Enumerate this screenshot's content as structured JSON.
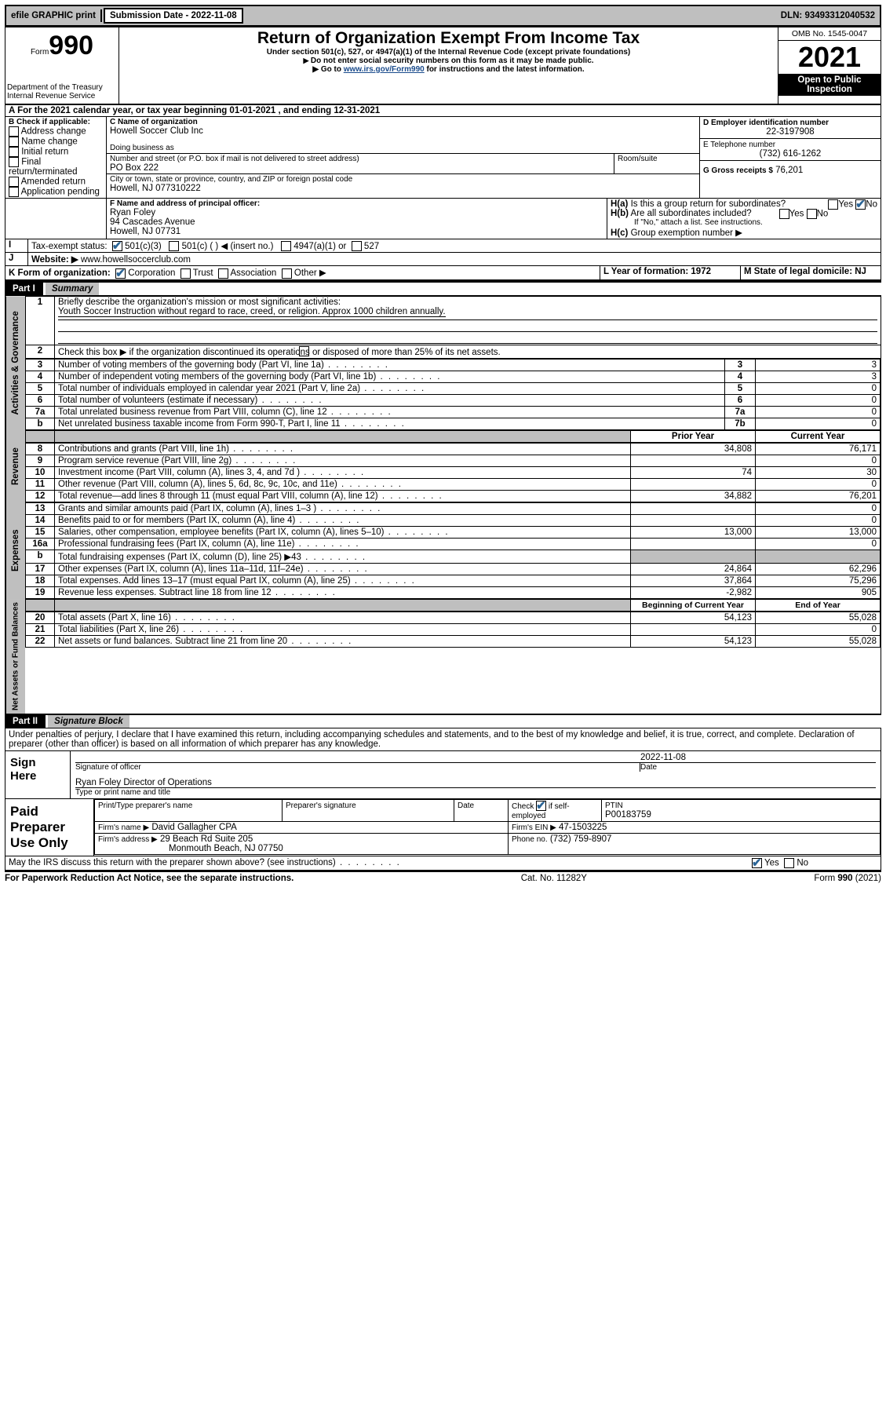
{
  "topbar": {
    "efile": "efile GRAPHIC print",
    "submission_label": "Submission Date - 2022-11-08",
    "dln": "DLN: 93493312040532"
  },
  "header": {
    "form_word": "Form",
    "form_num": "990",
    "dept": "Department of the Treasury",
    "irs": "Internal Revenue Service",
    "title": "Return of Organization Exempt From Income Tax",
    "subtitle": "Under section 501(c), 527, or 4947(a)(1) of the Internal Revenue Code (except private foundations)",
    "note1": "Do not enter social security numbers on this form as it may be made public.",
    "note2_pre": "Go to ",
    "note2_link": "www.irs.gov/Form990",
    "note2_post": " for instructions and the latest information.",
    "omb": "OMB No. 1545-0047",
    "year": "2021",
    "open": "Open to Public Inspection"
  },
  "sectionA": {
    "line": "For the 2021 calendar year, or tax year beginning 01-01-2021   , and ending 12-31-2021",
    "B_label": "B Check if applicable:",
    "B_opts": [
      "Address change",
      "Name change",
      "Initial return",
      "Final return/terminated",
      "Amended return",
      "Application pending"
    ],
    "C_label": "C Name of organization",
    "C_name": "Howell Soccer Club Inc",
    "dba_label": "Doing business as",
    "addr_label": "Number and street (or P.O. box if mail is not delivered to street address)",
    "room_label": "Room/suite",
    "addr": "PO Box 222",
    "city_label": "City or town, state or province, country, and ZIP or foreign postal code",
    "city": "Howell, NJ  077310222",
    "D_label": "D Employer identification number",
    "D_val": "22-3197908",
    "E_label": "E Telephone number",
    "E_val": "(732) 616-1262",
    "G_label": "G Gross receipts $",
    "G_val": "76,201",
    "F_label": "F  Name and address of principal officer:",
    "F_name": "Ryan Foley",
    "F_addr1": "94 Cascades Avenue",
    "F_addr2": "Howell, NJ  07731",
    "Ha_label": "H(a)  Is this a group return for subordinates?",
    "Hb_label": "H(b)  Are all subordinates included?",
    "Hb_note": "If \"No,\" attach a list. See instructions.",
    "Hc_label": "H(c)  Group exemption number ▶",
    "yes": "Yes",
    "no": "No",
    "I_label": "Tax-exempt status:",
    "I_501c3": "501(c)(3)",
    "I_501c": "501(c) (   ) ◀ (insert no.)",
    "I_4947": "4947(a)(1) or",
    "I_527": "527",
    "J_label": "Website: ▶",
    "J_val": "www.howellsoccerclub.com",
    "K_label": "K Form of organization:",
    "K_opts": [
      "Corporation",
      "Trust",
      "Association",
      "Other ▶"
    ],
    "L_label": "L Year of formation: 1972",
    "M_label": "M State of legal domicile: NJ"
  },
  "part1": {
    "hdr": "Part I",
    "title": "Summary",
    "l1_label": "Briefly describe the organization's mission or most significant activities:",
    "l1_text": "Youth Soccer Instruction without regard to race, creed, or religion. Approx 1000 children annually.",
    "l2": "Check this box ▶        if the organization discontinued its operations or disposed of more than 25% of its net assets.",
    "rows_top": [
      {
        "n": "3",
        "t": "Number of voting members of the governing body (Part VI, line 1a)",
        "box": "3",
        "v": "3"
      },
      {
        "n": "4",
        "t": "Number of independent voting members of the governing body (Part VI, line 1b)",
        "box": "4",
        "v": "3"
      },
      {
        "n": "5",
        "t": "Total number of individuals employed in calendar year 2021 (Part V, line 2a)",
        "box": "5",
        "v": "0"
      },
      {
        "n": "6",
        "t": "Total number of volunteers (estimate if necessary)",
        "box": "6",
        "v": "0"
      },
      {
        "n": "7a",
        "t": "Total unrelated business revenue from Part VIII, column (C), line 12",
        "box": "7a",
        "v": "0"
      },
      {
        "n": "b",
        "t": "Net unrelated business taxable income from Form 990-T, Part I, line 11",
        "box": "7b",
        "v": "0"
      }
    ],
    "col_prior": "Prior Year",
    "col_current": "Current Year",
    "rev": [
      {
        "n": "8",
        "t": "Contributions and grants (Part VIII, line 1h)",
        "p": "34,808",
        "c": "76,171"
      },
      {
        "n": "9",
        "t": "Program service revenue (Part VIII, line 2g)",
        "p": "",
        "c": "0"
      },
      {
        "n": "10",
        "t": "Investment income (Part VIII, column (A), lines 3, 4, and 7d )",
        "p": "74",
        "c": "30"
      },
      {
        "n": "11",
        "t": "Other revenue (Part VIII, column (A), lines 5, 6d, 8c, 9c, 10c, and 11e)",
        "p": "",
        "c": "0"
      },
      {
        "n": "12",
        "t": "Total revenue—add lines 8 through 11 (must equal Part VIII, column (A), line 12)",
        "p": "34,882",
        "c": "76,201"
      }
    ],
    "exp": [
      {
        "n": "13",
        "t": "Grants and similar amounts paid (Part IX, column (A), lines 1–3 )",
        "p": "",
        "c": "0"
      },
      {
        "n": "14",
        "t": "Benefits paid to or for members (Part IX, column (A), line 4)",
        "p": "",
        "c": "0"
      },
      {
        "n": "15",
        "t": "Salaries, other compensation, employee benefits (Part IX, column (A), lines 5–10)",
        "p": "13,000",
        "c": "13,000"
      },
      {
        "n": "16a",
        "t": "Professional fundraising fees (Part IX, column (A), line 11e)",
        "p": "",
        "c": "0"
      },
      {
        "n": "b",
        "t": "Total fundraising expenses (Part IX, column (D), line 25) ▶43",
        "p": "shade",
        "c": "shade"
      },
      {
        "n": "17",
        "t": "Other expenses (Part IX, column (A), lines 11a–11d, 11f–24e)",
        "p": "24,864",
        "c": "62,296"
      },
      {
        "n": "18",
        "t": "Total expenses. Add lines 13–17 (must equal Part IX, column (A), line 25)",
        "p": "37,864",
        "c": "75,296"
      },
      {
        "n": "19",
        "t": "Revenue less expenses. Subtract line 18 from line 12",
        "p": "-2,982",
        "c": "905"
      }
    ],
    "col_begin": "Beginning of Current Year",
    "col_end": "End of Year",
    "net": [
      {
        "n": "20",
        "t": "Total assets (Part X, line 16)",
        "p": "54,123",
        "c": "55,028"
      },
      {
        "n": "21",
        "t": "Total liabilities (Part X, line 26)",
        "p": "",
        "c": "0"
      },
      {
        "n": "22",
        "t": "Net assets or fund balances. Subtract line 21 from line 20",
        "p": "54,123",
        "c": "55,028"
      }
    ],
    "tab_gov": "Activities & Governance",
    "tab_rev": "Revenue",
    "tab_exp": "Expenses",
    "tab_net": "Net Assets or Fund Balances"
  },
  "part2": {
    "hdr": "Part II",
    "title": "Signature Block",
    "decl": "Under penalties of perjury, I declare that I have examined this return, including accompanying schedules and statements, and to the best of my knowledge and belief, it is true, correct, and complete. Declaration of preparer (other than officer) is based on all information of which preparer has any knowledge.",
    "sign_here": "Sign Here",
    "sig_officer": "Signature of officer",
    "sig_date_val": "2022-11-08",
    "sig_date": "Date",
    "officer_name": "Ryan Foley  Director of Operations",
    "type_name": "Type or print name and title",
    "paid": "Paid Preparer Use Only",
    "pt_name_label": "Print/Type preparer's name",
    "pt_sig_label": "Preparer's signature",
    "pt_date": "Date",
    "pt_check": "Check         if self-employed",
    "ptin_label": "PTIN",
    "ptin": "P00183759",
    "firm_name_label": "Firm's name     ▶",
    "firm_name": "David Gallagher CPA",
    "firm_ein_label": "Firm's EIN ▶",
    "firm_ein": "47-1503225",
    "firm_addr_label": "Firm's address ▶",
    "firm_addr1": "29 Beach Rd Suite 205",
    "firm_addr2": "Monmouth Beach, NJ  07750",
    "firm_phone_label": "Phone no.",
    "firm_phone": "(732) 759-8907",
    "discuss": "May the IRS discuss this return with the preparer shown above? (see instructions)",
    "paperwork": "For Paperwork Reduction Act Notice, see the separate instructions.",
    "catno": "Cat. No. 11282Y",
    "formfoot": "Form 990 (2021)"
  }
}
